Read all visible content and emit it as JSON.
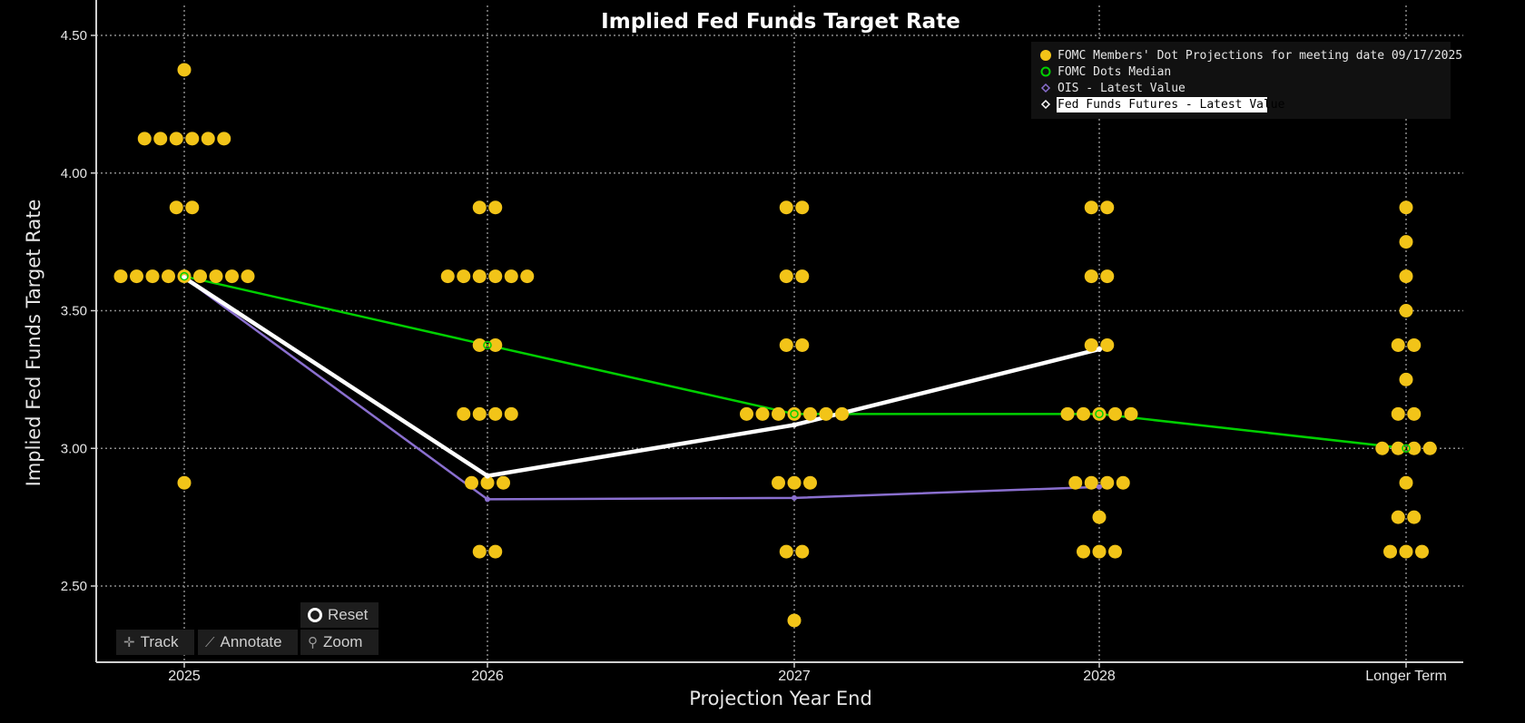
{
  "chart_data": {
    "type": "scatter",
    "title": "Implied Fed Funds Target Rate",
    "xlabel": "Projection Year End",
    "ylabel": "Implied Fed Funds Target Rate",
    "categories": [
      "2025",
      "2026",
      "2027",
      "2028",
      "Longer Term"
    ],
    "ylim": [
      2.25,
      4.6
    ],
    "yticks": [
      2.5,
      3.0,
      3.5,
      4.0,
      4.5
    ],
    "ytick_labels": [
      "2.50",
      "3.00",
      "3.50",
      "4.00",
      "4.50"
    ],
    "grid": true,
    "legend_position": "top-right",
    "dots": [
      {
        "category": "2025",
        "counts": [
          {
            "y": 4.375,
            "n": 1
          },
          {
            "y": 4.125,
            "n": 6
          },
          {
            "y": 3.875,
            "n": 2
          },
          {
            "y": 3.625,
            "n": 9
          },
          {
            "y": 2.875,
            "n": 1
          }
        ]
      },
      {
        "category": "2026",
        "counts": [
          {
            "y": 3.875,
            "n": 2
          },
          {
            "y": 3.625,
            "n": 6
          },
          {
            "y": 3.375,
            "n": 2
          },
          {
            "y": 3.125,
            "n": 4
          },
          {
            "y": 2.875,
            "n": 3
          },
          {
            "y": 2.625,
            "n": 2
          }
        ]
      },
      {
        "category": "2027",
        "counts": [
          {
            "y": 3.875,
            "n": 2
          },
          {
            "y": 3.625,
            "n": 2
          },
          {
            "y": 3.375,
            "n": 2
          },
          {
            "y": 3.125,
            "n": 7
          },
          {
            "y": 2.875,
            "n": 3
          },
          {
            "y": 2.625,
            "n": 2
          },
          {
            "y": 2.375,
            "n": 1
          }
        ]
      },
      {
        "category": "2028",
        "counts": [
          {
            "y": 3.875,
            "n": 2
          },
          {
            "y": 3.625,
            "n": 2
          },
          {
            "y": 3.375,
            "n": 2
          },
          {
            "y": 3.125,
            "n": 5
          },
          {
            "y": 2.875,
            "n": 4
          },
          {
            "y": 2.75,
            "n": 1
          },
          {
            "y": 2.625,
            "n": 3
          }
        ]
      },
      {
        "category": "Longer Term",
        "counts": [
          {
            "y": 3.875,
            "n": 1
          },
          {
            "y": 3.75,
            "n": 1
          },
          {
            "y": 3.625,
            "n": 1
          },
          {
            "y": 3.5,
            "n": 1
          },
          {
            "y": 3.375,
            "n": 2
          },
          {
            "y": 3.25,
            "n": 1
          },
          {
            "y": 3.125,
            "n": 2
          },
          {
            "y": 3.0,
            "n": 4
          },
          {
            "y": 2.875,
            "n": 1
          },
          {
            "y": 2.75,
            "n": 2
          },
          {
            "y": 2.625,
            "n": 3
          }
        ]
      }
    ],
    "series": [
      {
        "name": "FOMC Dots Median",
        "color": "#00d000",
        "values": [
          3.625,
          3.375,
          3.125,
          3.125,
          3.0
        ]
      },
      {
        "name": "OIS - Latest Value",
        "color": "#8a6fcf",
        "values": [
          3.62,
          2.815,
          2.82,
          2.86,
          null
        ]
      },
      {
        "name": "Fed Funds Futures - Latest Value",
        "color": "#ffffff",
        "values": [
          3.62,
          2.9,
          3.085,
          3.36,
          null
        ]
      }
    ],
    "legend": [
      {
        "label": "FOMC Members' Dot Projections for meeting date 09/17/2025",
        "marker": "dot",
        "color": "#f2c418"
      },
      {
        "label": "FOMC Dots Median",
        "marker": "ring",
        "color": "#00d000"
      },
      {
        "label": "OIS - Latest Value",
        "marker": "diamond",
        "color": "#8a6fcf"
      },
      {
        "label": "Fed Funds Futures - Latest Value",
        "marker": "diamond",
        "color": "#ffffff",
        "highlight": true
      }
    ],
    "dot_color": "#f2c418"
  },
  "toolbar": {
    "reset": "Reset",
    "track": "Track",
    "annotate": "Annotate",
    "zoom": "Zoom"
  }
}
